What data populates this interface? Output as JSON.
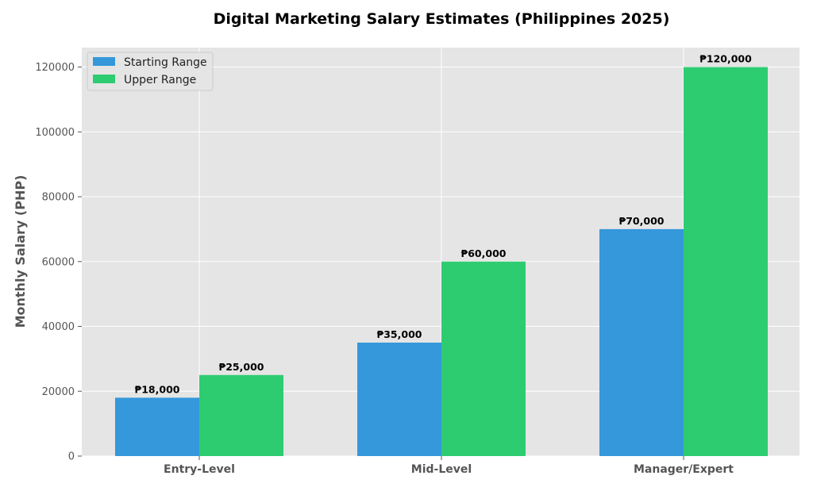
{
  "colors": {
    "plot_bg": "#e5e5e5",
    "grid": "#ffffff",
    "starting": "#3498db",
    "upper": "#2ecc71"
  },
  "chart_data": {
    "type": "bar",
    "title": "Digital Marketing Salary Estimates (Philippines 2025)",
    "xlabel": "",
    "ylabel": "Monthly Salary (PHP)",
    "categories": [
      "Entry-Level",
      "Mid-Level",
      "Manager/Expert"
    ],
    "series": [
      {
        "name": "Starting Range",
        "color": "#3498db",
        "values": [
          18000,
          35000,
          70000
        ],
        "labels": [
          "₱18,000",
          "₱35,000",
          "₱70,000"
        ]
      },
      {
        "name": "Upper Range",
        "color": "#2ecc71",
        "values": [
          25000,
          60000,
          120000
        ],
        "labels": [
          "₱25,000",
          "₱60,000",
          "₱120,000"
        ]
      }
    ],
    "yticks": [
      0,
      20000,
      40000,
      60000,
      80000,
      100000,
      120000
    ],
    "ylim": [
      0,
      126000
    ],
    "grid": true,
    "legend_position": "top-left"
  }
}
